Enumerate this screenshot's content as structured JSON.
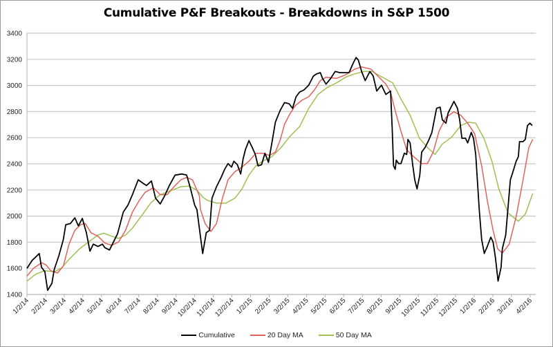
{
  "chart_data": {
    "type": "line",
    "title": "Cumulative P&F Breakouts - Breakdowns in S&P 1500",
    "xlabel": "",
    "ylabel": "",
    "ylim": [
      1400,
      3400
    ],
    "yticks": [
      1400,
      1600,
      1800,
      2000,
      2200,
      2400,
      2600,
      2800,
      3000,
      3200,
      3400
    ],
    "x_units": "months since 1/2/14",
    "xlim": [
      0,
      27.3
    ],
    "xtick_labels": [
      "1/2/14",
      "2/2/14",
      "3/2/14",
      "4/2/14",
      "5/2/14",
      "6/2/14",
      "7/2/14",
      "8/2/14",
      "9/2/14",
      "10/2/14",
      "11/2/14",
      "12/2/14",
      "1/2/15",
      "2/2/15",
      "3/2/15",
      "4/2/15",
      "5/2/15",
      "6/2/15",
      "7/2/15",
      "8/2/15",
      "9/2/15",
      "10/2/15",
      "11/2/15",
      "12/2/15",
      "1/2/16",
      "2/2/16",
      "3/2/16",
      "4/2/16"
    ],
    "grid": "horizontal",
    "legend_position": "bottom",
    "colors": {
      "Cumulative": "#000000",
      "20 Day MA": "#e0605a",
      "50 Day MA": "#9dc04f",
      "grid": "#c8c8c8"
    },
    "series": [
      {
        "name": "Cumulative",
        "points": [
          [
            0,
            1600
          ],
          [
            0.28,
            1661
          ],
          [
            0.47,
            1687
          ],
          [
            0.66,
            1714
          ],
          [
            0.78,
            1608
          ],
          [
            0.96,
            1574
          ],
          [
            1.11,
            1432
          ],
          [
            1.34,
            1485
          ],
          [
            1.46,
            1590
          ],
          [
            1.71,
            1696
          ],
          [
            1.95,
            1820
          ],
          [
            2.08,
            1934
          ],
          [
            2.33,
            1943
          ],
          [
            2.57,
            1987
          ],
          [
            2.76,
            1925
          ],
          [
            2.97,
            1982
          ],
          [
            3.19,
            1872
          ],
          [
            3.38,
            1732
          ],
          [
            3.56,
            1785
          ],
          [
            3.81,
            1767
          ],
          [
            4.05,
            1785
          ],
          [
            4.18,
            1758
          ],
          [
            4.43,
            1740
          ],
          [
            4.61,
            1793
          ],
          [
            4.86,
            1864
          ],
          [
            5.17,
            2031
          ],
          [
            5.42,
            2084
          ],
          [
            5.66,
            2164
          ],
          [
            5.97,
            2278
          ],
          [
            6.22,
            2252
          ],
          [
            6.41,
            2234
          ],
          [
            6.68,
            2269
          ],
          [
            6.9,
            2137
          ],
          [
            7.15,
            2093
          ],
          [
            7.39,
            2155
          ],
          [
            7.64,
            2234
          ],
          [
            7.95,
            2314
          ],
          [
            8.32,
            2322
          ],
          [
            8.57,
            2314
          ],
          [
            8.75,
            2225
          ],
          [
            9.0,
            2084
          ],
          [
            9.12,
            2049
          ],
          [
            9.25,
            1908
          ],
          [
            9.43,
            1714
          ],
          [
            9.62,
            1873
          ],
          [
            9.8,
            1891
          ],
          [
            9.93,
            2137
          ],
          [
            10.17,
            2225
          ],
          [
            10.42,
            2296
          ],
          [
            10.61,
            2358
          ],
          [
            10.79,
            2402
          ],
          [
            10.98,
            2375
          ],
          [
            11.1,
            2420
          ],
          [
            11.29,
            2393
          ],
          [
            11.47,
            2322
          ],
          [
            11.6,
            2437
          ],
          [
            11.72,
            2508
          ],
          [
            11.91,
            2578
          ],
          [
            12.09,
            2525
          ],
          [
            12.25,
            2472
          ],
          [
            12.4,
            2384
          ],
          [
            12.59,
            2393
          ],
          [
            12.77,
            2481
          ],
          [
            12.96,
            2411
          ],
          [
            13.14,
            2560
          ],
          [
            13.33,
            2719
          ],
          [
            13.58,
            2807
          ],
          [
            13.82,
            2869
          ],
          [
            14.07,
            2860
          ],
          [
            14.25,
            2825
          ],
          [
            14.44,
            2913
          ],
          [
            14.63,
            2949
          ],
          [
            14.87,
            2966
          ],
          [
            15.12,
            3002
          ],
          [
            15.37,
            3072
          ],
          [
            15.55,
            3089
          ],
          [
            15.74,
            3098
          ],
          [
            15.86,
            3054
          ],
          [
            16.05,
            3010
          ],
          [
            16.3,
            3054
          ],
          [
            16.54,
            3107
          ],
          [
            16.79,
            3098
          ],
          [
            17.04,
            3098
          ],
          [
            17.28,
            3098
          ],
          [
            17.53,
            3178
          ],
          [
            17.66,
            3213
          ],
          [
            17.78,
            3195
          ],
          [
            17.96,
            3107
          ],
          [
            18.15,
            3037
          ],
          [
            18.4,
            3107
          ],
          [
            18.58,
            3072
          ],
          [
            18.77,
            2957
          ],
          [
            19.02,
            3002
          ],
          [
            19.26,
            2931
          ],
          [
            19.51,
            2957
          ],
          [
            19.6,
            2666
          ],
          [
            19.67,
            2384
          ],
          [
            19.76,
            2358
          ],
          [
            19.82,
            2428
          ],
          [
            19.94,
            2402
          ],
          [
            20.07,
            2402
          ],
          [
            20.25,
            2481
          ],
          [
            20.38,
            2472
          ],
          [
            20.44,
            2587
          ],
          [
            20.56,
            2560
          ],
          [
            20.69,
            2402
          ],
          [
            20.81,
            2278
          ],
          [
            20.93,
            2208
          ],
          [
            21.08,
            2314
          ],
          [
            21.18,
            2490
          ],
          [
            21.36,
            2525
          ],
          [
            21.55,
            2578
          ],
          [
            21.73,
            2640
          ],
          [
            21.86,
            2737
          ],
          [
            21.98,
            2825
          ],
          [
            22.17,
            2834
          ],
          [
            22.29,
            2737
          ],
          [
            22.48,
            2711
          ],
          [
            22.6,
            2790
          ],
          [
            22.79,
            2843
          ],
          [
            22.91,
            2878
          ],
          [
            23.1,
            2825
          ],
          [
            23.22,
            2737
          ],
          [
            23.34,
            2596
          ],
          [
            23.53,
            2596
          ],
          [
            23.65,
            2560
          ],
          [
            23.84,
            2640
          ],
          [
            23.96,
            2596
          ],
          [
            24.08,
            2472
          ],
          [
            24.27,
            2049
          ],
          [
            24.4,
            1820
          ],
          [
            24.54,
            1714
          ],
          [
            24.7,
            1767
          ],
          [
            24.89,
            1838
          ],
          [
            25.01,
            1802
          ],
          [
            25.14,
            1679
          ],
          [
            25.28,
            1502
          ],
          [
            25.44,
            1608
          ],
          [
            25.51,
            1749
          ],
          [
            25.69,
            1855
          ],
          [
            25.94,
            2278
          ],
          [
            26.06,
            2331
          ],
          [
            26.25,
            2420
          ],
          [
            26.37,
            2455
          ],
          [
            26.43,
            2570
          ],
          [
            26.62,
            2570
          ],
          [
            26.74,
            2587
          ],
          [
            26.86,
            2693
          ],
          [
            26.99,
            2711
          ],
          [
            27.11,
            2693
          ]
        ]
      },
      {
        "name": "20 Day MA",
        "points": [
          [
            0,
            1541
          ],
          [
            0.35,
            1600
          ],
          [
            0.78,
            1643
          ],
          [
            1.03,
            1626
          ],
          [
            1.27,
            1582
          ],
          [
            1.64,
            1564
          ],
          [
            1.95,
            1617
          ],
          [
            2.26,
            1785
          ],
          [
            2.57,
            1891
          ],
          [
            2.88,
            1934
          ],
          [
            3.13,
            1943
          ],
          [
            3.44,
            1872
          ],
          [
            3.81,
            1846
          ],
          [
            4.18,
            1793
          ],
          [
            4.55,
            1776
          ],
          [
            4.92,
            1802
          ],
          [
            5.29,
            1891
          ],
          [
            5.66,
            2031
          ],
          [
            6.03,
            2120
          ],
          [
            6.34,
            2182
          ],
          [
            6.78,
            2217
          ],
          [
            7.15,
            2164
          ],
          [
            7.52,
            2164
          ],
          [
            7.89,
            2225
          ],
          [
            8.26,
            2278
          ],
          [
            8.57,
            2296
          ],
          [
            8.88,
            2278
          ],
          [
            9.25,
            2155
          ],
          [
            9.31,
            2051
          ],
          [
            9.56,
            1943
          ],
          [
            9.87,
            1882
          ],
          [
            10.17,
            1943
          ],
          [
            10.49,
            2137
          ],
          [
            10.79,
            2278
          ],
          [
            11.16,
            2340
          ],
          [
            11.54,
            2375
          ],
          [
            11.91,
            2420
          ],
          [
            12.28,
            2481
          ],
          [
            12.65,
            2481
          ],
          [
            13.02,
            2464
          ],
          [
            13.33,
            2490
          ],
          [
            13.58,
            2578
          ],
          [
            13.82,
            2702
          ],
          [
            14.07,
            2772
          ],
          [
            14.38,
            2843
          ],
          [
            14.75,
            2887
          ],
          [
            15.12,
            2913
          ],
          [
            15.43,
            2966
          ],
          [
            15.74,
            3037
          ],
          [
            16.05,
            3063
          ],
          [
            16.6,
            3054
          ],
          [
            17.1,
            3081
          ],
          [
            17.59,
            3125
          ],
          [
            17.96,
            3142
          ],
          [
            18.46,
            3125
          ],
          [
            19.26,
            3010
          ],
          [
            19.51,
            2949
          ],
          [
            19.76,
            2807
          ],
          [
            20.07,
            2649
          ],
          [
            20.37,
            2508
          ],
          [
            20.75,
            2455
          ],
          [
            21.18,
            2402
          ],
          [
            21.49,
            2402
          ],
          [
            21.8,
            2490
          ],
          [
            22.11,
            2649
          ],
          [
            22.48,
            2755
          ],
          [
            22.91,
            2798
          ],
          [
            23.28,
            2772
          ],
          [
            23.65,
            2711
          ],
          [
            24.02,
            2631
          ],
          [
            24.4,
            2384
          ],
          [
            24.7,
            2120
          ],
          [
            25.01,
            1891
          ],
          [
            25.26,
            1749
          ],
          [
            25.51,
            1717
          ],
          [
            25.88,
            1785
          ],
          [
            26.25,
            1996
          ],
          [
            26.62,
            2278
          ],
          [
            26.93,
            2525
          ],
          [
            27.14,
            2587
          ]
        ]
      },
      {
        "name": "50 Day MA",
        "points": [
          [
            0,
            1502
          ],
          [
            0.47,
            1555
          ],
          [
            0.96,
            1582
          ],
          [
            1.46,
            1573
          ],
          [
            1.83,
            1600
          ],
          [
            2.33,
            1679
          ],
          [
            2.82,
            1749
          ],
          [
            3.31,
            1802
          ],
          [
            3.81,
            1855
          ],
          [
            4.12,
            1869
          ],
          [
            4.55,
            1846
          ],
          [
            4.92,
            1829
          ],
          [
            5.29,
            1855
          ],
          [
            5.66,
            1908
          ],
          [
            6.16,
            2005
          ],
          [
            6.65,
            2102
          ],
          [
            7.15,
            2164
          ],
          [
            7.64,
            2190
          ],
          [
            8.26,
            2225
          ],
          [
            8.69,
            2229
          ],
          [
            9.12,
            2199
          ],
          [
            9.43,
            2146
          ],
          [
            9.68,
            2120
          ],
          [
            10.17,
            2099
          ],
          [
            10.67,
            2099
          ],
          [
            11.16,
            2137
          ],
          [
            11.54,
            2208
          ],
          [
            11.91,
            2314
          ],
          [
            12.28,
            2384
          ],
          [
            12.65,
            2420
          ],
          [
            13.14,
            2455
          ],
          [
            13.64,
            2525
          ],
          [
            14.13,
            2613
          ],
          [
            14.63,
            2684
          ],
          [
            15.12,
            2825
          ],
          [
            15.62,
            2931
          ],
          [
            16.11,
            2984
          ],
          [
            16.6,
            3019
          ],
          [
            17.1,
            3063
          ],
          [
            17.59,
            3089
          ],
          [
            18.09,
            3107
          ],
          [
            18.52,
            3107
          ],
          [
            19.63,
            3019
          ],
          [
            20.07,
            2896
          ],
          [
            20.56,
            2772
          ],
          [
            21.06,
            2596
          ],
          [
            21.49,
            2525
          ],
          [
            21.9,
            2472
          ],
          [
            22.29,
            2552
          ],
          [
            22.79,
            2605
          ],
          [
            23.28,
            2693
          ],
          [
            23.71,
            2719
          ],
          [
            24.08,
            2711
          ],
          [
            24.52,
            2596
          ],
          [
            24.95,
            2420
          ],
          [
            25.32,
            2208
          ],
          [
            25.82,
            2023
          ],
          [
            26.37,
            1961
          ],
          [
            26.74,
            2014
          ],
          [
            27.14,
            2173
          ]
        ]
      }
    ]
  }
}
